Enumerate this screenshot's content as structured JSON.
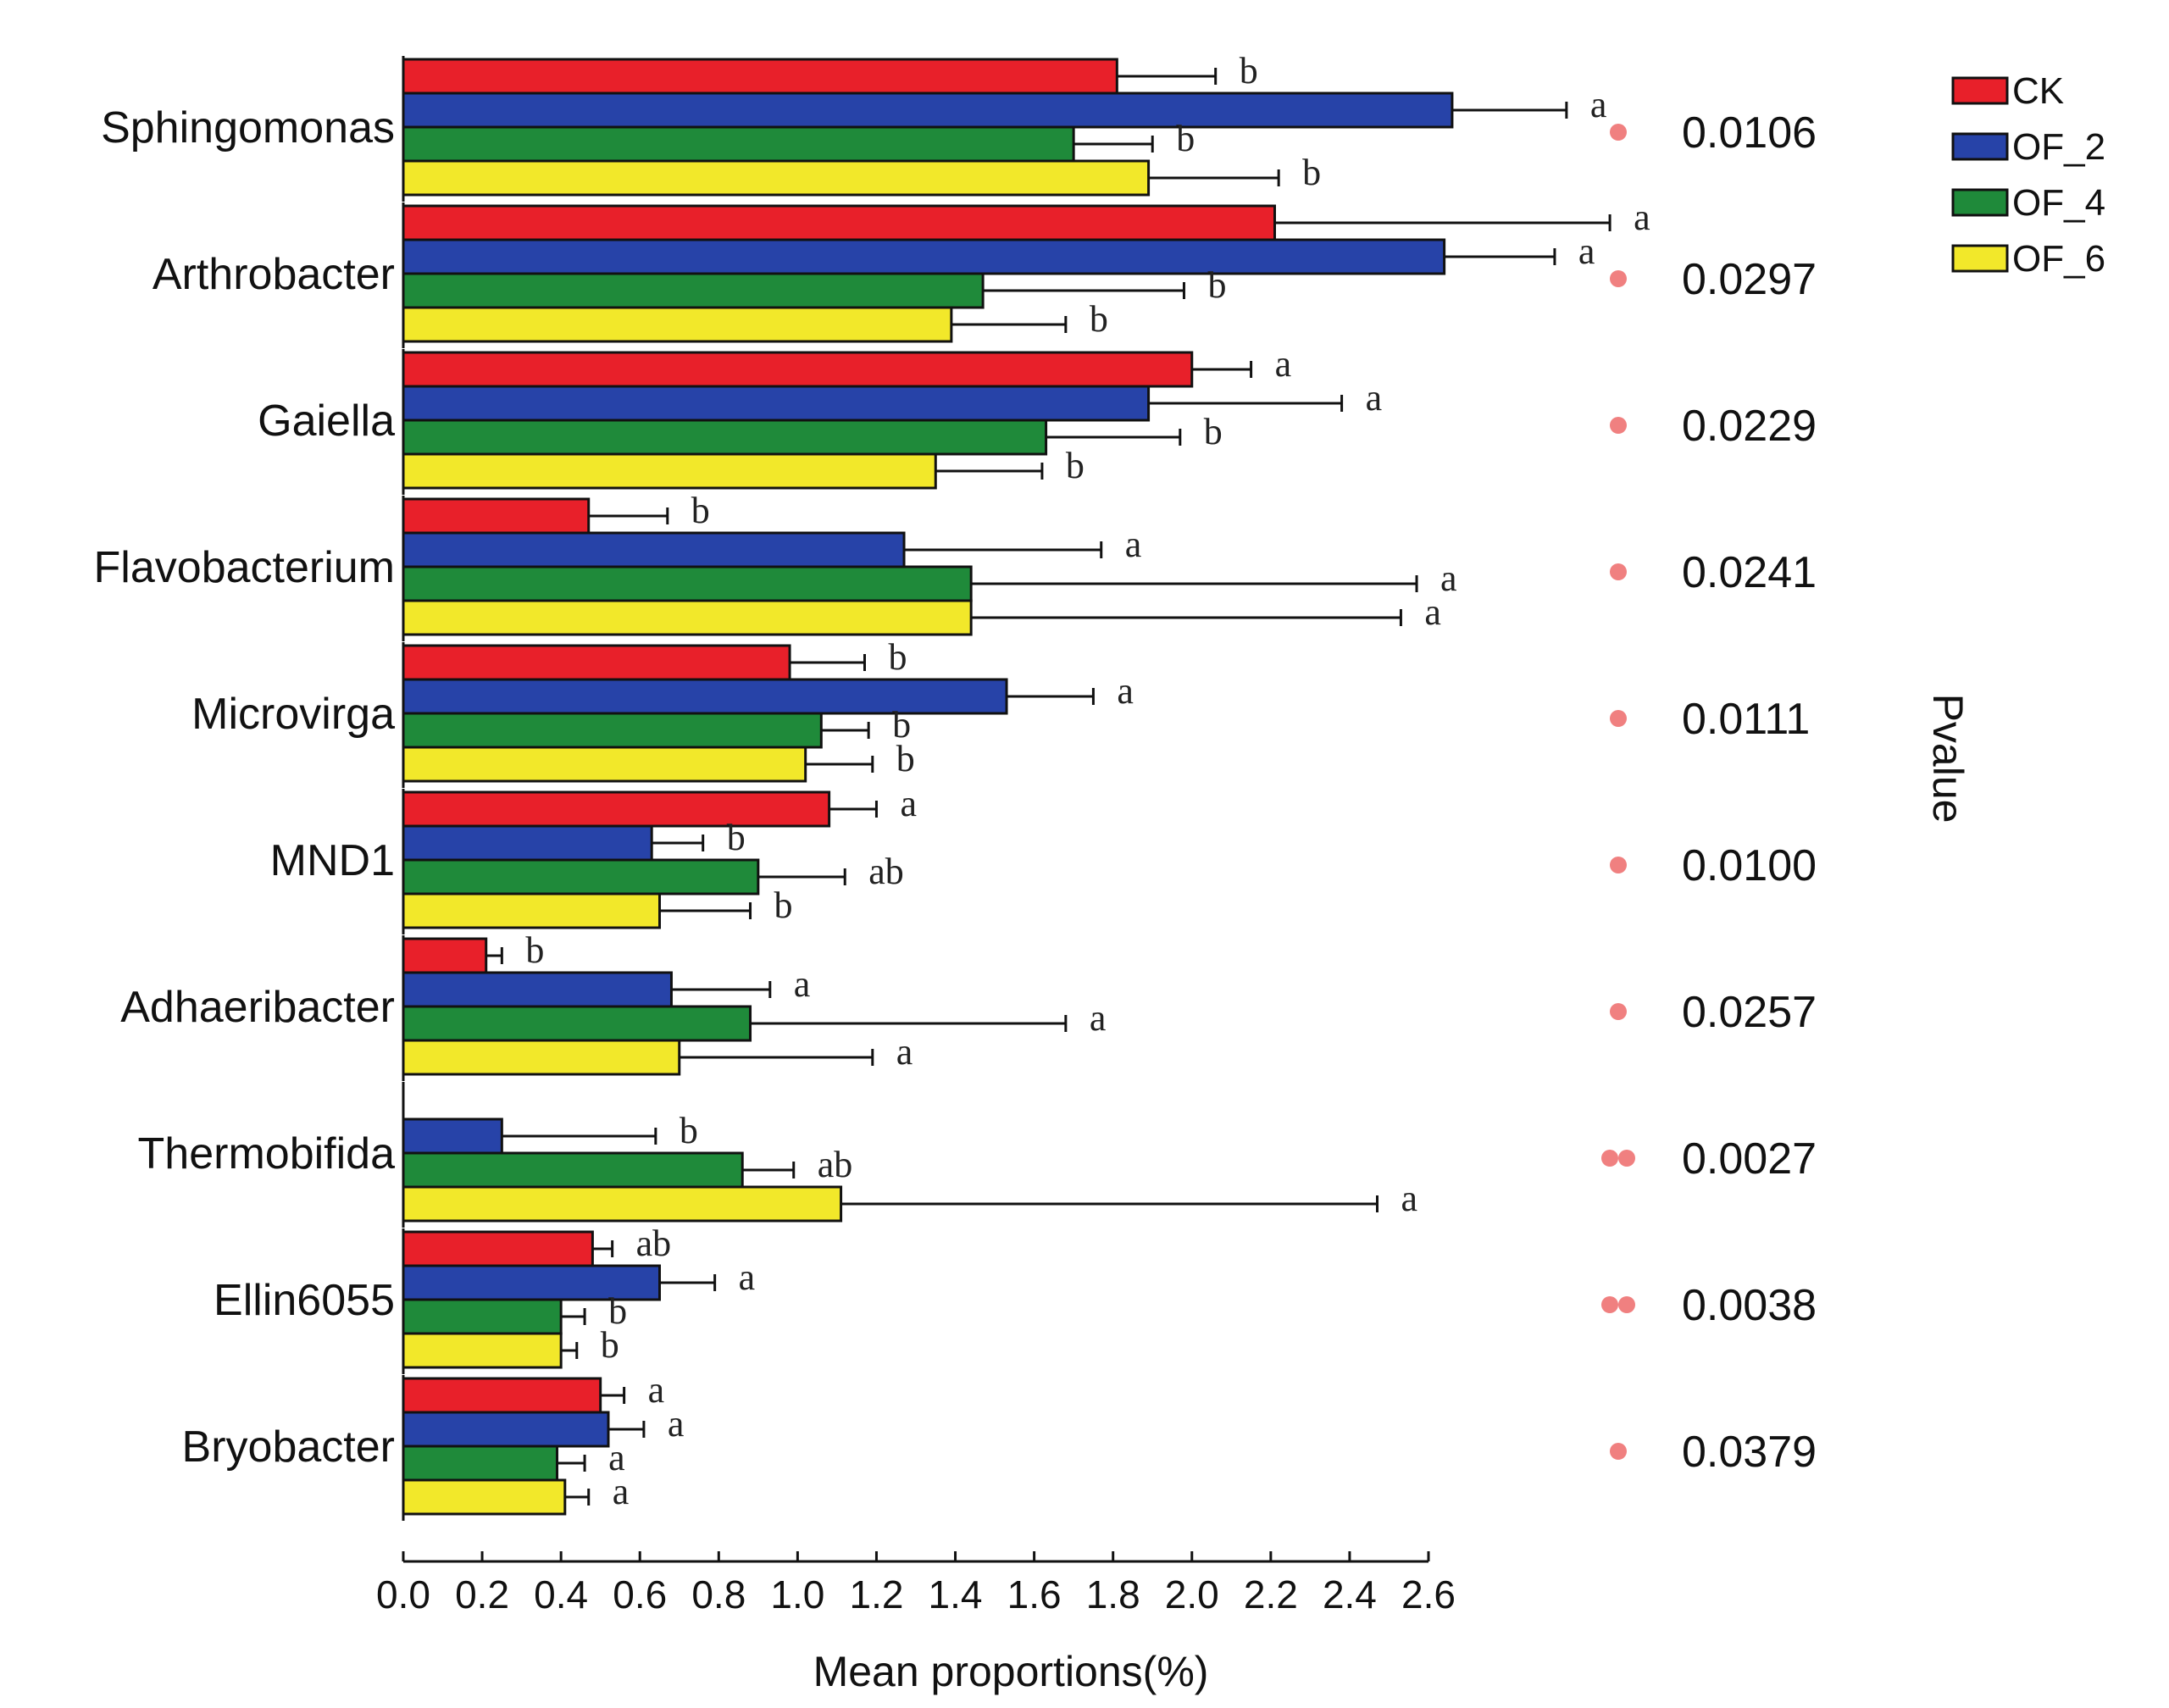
{
  "chart_data": {
    "type": "bar",
    "orientation": "horizontal",
    "xlabel": "Mean proportions(%)",
    "right_label": "Pvalue",
    "xlim": [
      0.0,
      2.6
    ],
    "xticks": [
      "0.0",
      "0.2",
      "0.4",
      "0.6",
      "0.8",
      "1.0",
      "1.2",
      "1.4",
      "1.6",
      "1.8",
      "2.0",
      "2.2",
      "2.4",
      "2.6"
    ],
    "legend_position": "top-right",
    "series": [
      {
        "name": "CK",
        "color": "#e8202a"
      },
      {
        "name": "OF_2",
        "color": "#2743a8"
      },
      {
        "name": "OF_4",
        "color": "#1f8a3a"
      },
      {
        "name": "OF_6",
        "color": "#f2e82a"
      }
    ],
    "categories": [
      {
        "name": "Sphingomonas",
        "pvalue": "0.0106",
        "stars": 1,
        "values": [
          1.81,
          2.66,
          1.7,
          1.89
        ],
        "errors": [
          0.25,
          0.29,
          0.2,
          0.33
        ],
        "letters": [
          "b",
          "a",
          "b",
          "b"
        ]
      },
      {
        "name": "Arthrobacter",
        "pvalue": "0.0297",
        "stars": 1,
        "values": [
          2.21,
          2.64,
          1.47,
          1.39
        ],
        "errors": [
          0.85,
          0.28,
          0.51,
          0.29
        ],
        "letters": [
          "a",
          "a",
          "b",
          "b"
        ]
      },
      {
        "name": "Gaiella",
        "pvalue": "0.0229",
        "stars": 1,
        "values": [
          2.0,
          1.89,
          1.63,
          1.35
        ],
        "errors": [
          0.15,
          0.49,
          0.34,
          0.27
        ],
        "letters": [
          "a",
          "a",
          "b",
          "b"
        ]
      },
      {
        "name": "Flavobacterium",
        "pvalue": "0.0241",
        "stars": 1,
        "values": [
          0.47,
          1.27,
          1.44,
          1.44
        ],
        "errors": [
          0.2,
          0.5,
          1.13,
          1.09
        ],
        "letters": [
          "b",
          "a",
          "a",
          "a"
        ]
      },
      {
        "name": "Microvirga",
        "pvalue": "0.0111",
        "stars": 1,
        "values": [
          0.98,
          1.53,
          1.06,
          1.02
        ],
        "errors": [
          0.19,
          0.22,
          0.12,
          0.17
        ],
        "letters": [
          "b",
          "a",
          "b",
          "b"
        ]
      },
      {
        "name": "MND1",
        "pvalue": "0.0100",
        "stars": 1,
        "values": [
          1.08,
          0.63,
          0.9,
          0.65
        ],
        "errors": [
          0.12,
          0.13,
          0.22,
          0.23
        ],
        "letters": [
          "a",
          "b",
          "ab",
          "b"
        ]
      },
      {
        "name": "Adhaeribacter",
        "pvalue": "0.0257",
        "stars": 1,
        "values": [
          0.21,
          0.68,
          0.88,
          0.7
        ],
        "errors": [
          0.04,
          0.25,
          0.8,
          0.49
        ],
        "letters": [
          "b",
          "a",
          "a",
          "a"
        ]
      },
      {
        "name": "Thermobifida",
        "pvalue": "0.0027",
        "stars": 2,
        "values": [
          0.0,
          0.25,
          0.86,
          1.11
        ],
        "errors": [
          0.0,
          0.39,
          0.13,
          1.36
        ],
        "letters": [
          "",
          "b",
          "ab",
          "a"
        ]
      },
      {
        "name": "Ellin6055",
        "pvalue": "0.0038",
        "stars": 2,
        "values": [
          0.48,
          0.65,
          0.4,
          0.4
        ],
        "errors": [
          0.05,
          0.14,
          0.06,
          0.04
        ],
        "letters": [
          "ab",
          "a",
          "b",
          "b"
        ]
      },
      {
        "name": "Bryobacter",
        "pvalue": "0.0379",
        "stars": 1,
        "values": [
          0.5,
          0.52,
          0.39,
          0.41
        ],
        "errors": [
          0.06,
          0.09,
          0.07,
          0.06
        ],
        "letters": [
          "a",
          "a",
          "a",
          "a"
        ]
      }
    ]
  }
}
